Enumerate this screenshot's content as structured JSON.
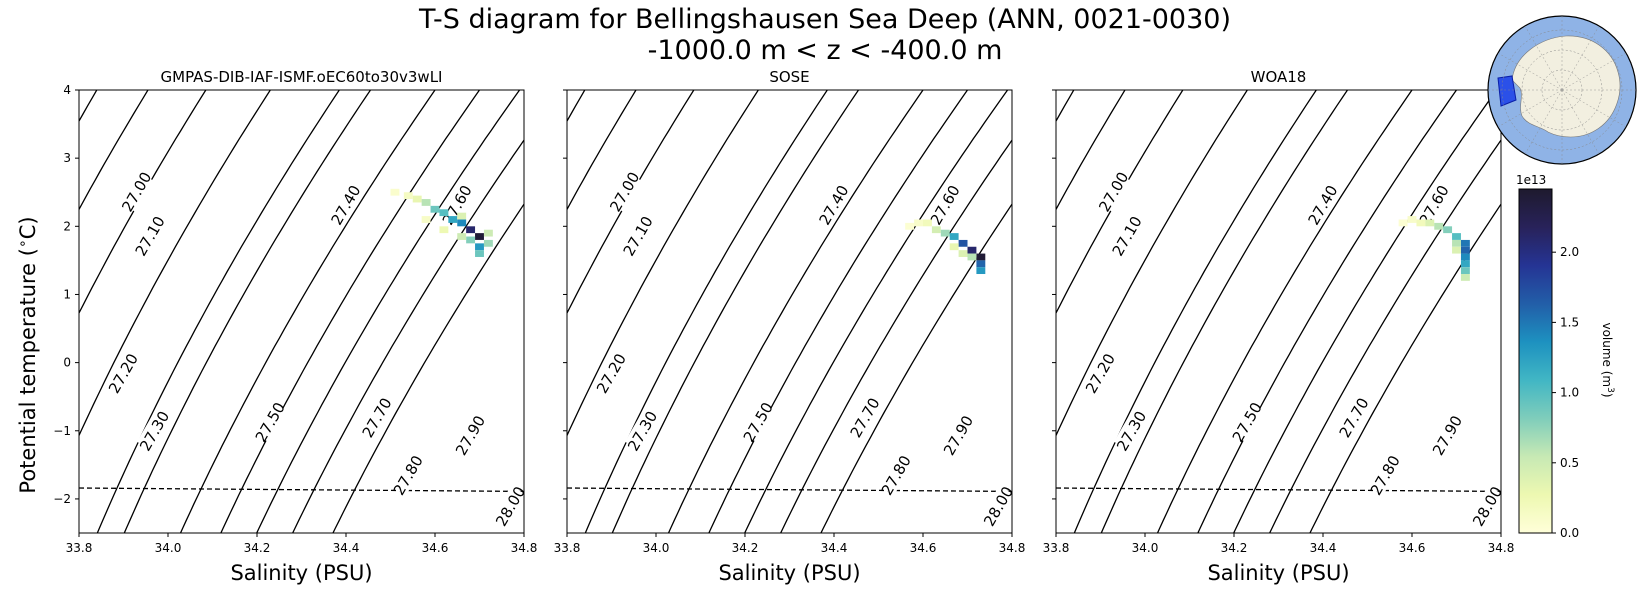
{
  "figure": {
    "title_line1": "T-S diagram for Bellingshausen Sea Deep (ANN, 0021-0030)",
    "title_line2": "-1000.0 m < z < -400.0 m",
    "ylabel": "Potential temperature ( ˚C)",
    "ylabel_text": "Potential temperature ($^\\circ$C)",
    "xlabel": "Salinity (PSU)"
  },
  "chart_data": {
    "type": "heatmap",
    "xlim": [
      33.8,
      34.8
    ],
    "ylim": [
      -2.5,
      4
    ],
    "x_ticks": [
      "33.8",
      "34.0",
      "34.2",
      "34.4",
      "34.6",
      "34.8"
    ],
    "y_ticks": [
      "4",
      "3",
      "2",
      "1",
      "0",
      "−1",
      "−2"
    ],
    "density_contours": [
      "27.00",
      "27.10",
      "27.20",
      "27.30",
      "27.40",
      "27.50",
      "27.60",
      "27.70",
      "27.80",
      "27.90",
      "28.00"
    ],
    "freezing_line": [
      [
        33.8,
        -1.84
      ],
      [
        34.8,
        -1.89
      ]
    ],
    "panels": [
      {
        "title": "GMPAS-DIB-IAF-ISMF.oEC60to30v3wLI",
        "cells": [
          [
            34.51,
            2.5,
            0.08
          ],
          [
            34.54,
            2.45,
            0.15
          ],
          [
            34.56,
            2.4,
            0.3
          ],
          [
            34.58,
            2.35,
            0.6
          ],
          [
            34.6,
            2.25,
            0.9
          ],
          [
            34.62,
            2.2,
            1.0
          ],
          [
            34.64,
            2.1,
            1.2
          ],
          [
            34.66,
            2.05,
            1.4
          ],
          [
            34.68,
            1.95,
            2.1
          ],
          [
            34.7,
            1.85,
            2.4
          ],
          [
            34.68,
            1.8,
            0.8
          ],
          [
            34.7,
            1.7,
            1.3
          ],
          [
            34.72,
            1.75,
            0.7
          ],
          [
            34.7,
            1.6,
            0.9
          ],
          [
            34.66,
            1.85,
            0.5
          ],
          [
            34.62,
            1.95,
            0.25
          ],
          [
            34.58,
            2.1,
            0.12
          ],
          [
            34.66,
            2.15,
            0.4
          ],
          [
            34.72,
            1.9,
            0.5
          ]
        ]
      },
      {
        "title": "SOSE",
        "cells": [
          [
            34.59,
            2.05,
            0.1
          ],
          [
            34.61,
            2.05,
            0.2
          ],
          [
            34.63,
            1.95,
            0.45
          ],
          [
            34.65,
            1.9,
            0.7
          ],
          [
            34.67,
            1.85,
            1.2
          ],
          [
            34.69,
            1.75,
            1.7
          ],
          [
            34.71,
            1.65,
            2.1
          ],
          [
            34.73,
            1.55,
            2.4
          ],
          [
            34.73,
            1.45,
            1.6
          ],
          [
            34.73,
            1.35,
            1.3
          ],
          [
            34.71,
            1.55,
            0.6
          ],
          [
            34.69,
            1.6,
            0.4
          ],
          [
            34.67,
            1.7,
            0.3
          ],
          [
            34.57,
            2.0,
            0.05
          ]
        ]
      },
      {
        "title": "WOA18",
        "cells": [
          [
            34.6,
            2.1,
            0.1
          ],
          [
            34.62,
            2.05,
            0.2
          ],
          [
            34.64,
            2.05,
            0.4
          ],
          [
            34.66,
            2.0,
            0.6
          ],
          [
            34.68,
            1.95,
            0.8
          ],
          [
            34.7,
            1.85,
            1.0
          ],
          [
            34.72,
            1.75,
            1.5
          ],
          [
            34.72,
            1.65,
            1.6
          ],
          [
            34.72,
            1.55,
            1.4
          ],
          [
            34.72,
            1.45,
            1.2
          ],
          [
            34.72,
            1.35,
            0.9
          ],
          [
            34.72,
            1.25,
            0.5
          ],
          [
            34.7,
            1.75,
            0.6
          ],
          [
            34.7,
            1.65,
            0.4
          ],
          [
            34.58,
            2.05,
            0.05
          ]
        ]
      }
    ],
    "colorbar": {
      "label": "volume (m³)",
      "label_text": "volume (m$^3$)",
      "exponent": "1e13",
      "ticks": [
        "0.0",
        "0.5",
        "1.0",
        "1.5",
        "2.0"
      ],
      "range": [
        0,
        2.45
      ],
      "colors": [
        "#ffffd9",
        "#edf8b1",
        "#c7e9b4",
        "#7fcdbb",
        "#41b6c4",
        "#1d91c0",
        "#225ea8",
        "#253494",
        "#28225a",
        "#1e1a2e"
      ]
    },
    "inset_map": {
      "ocean_color": "#8fb3e6",
      "land_color": "#f2efe0",
      "region_color": "#1a3ee8"
    }
  }
}
